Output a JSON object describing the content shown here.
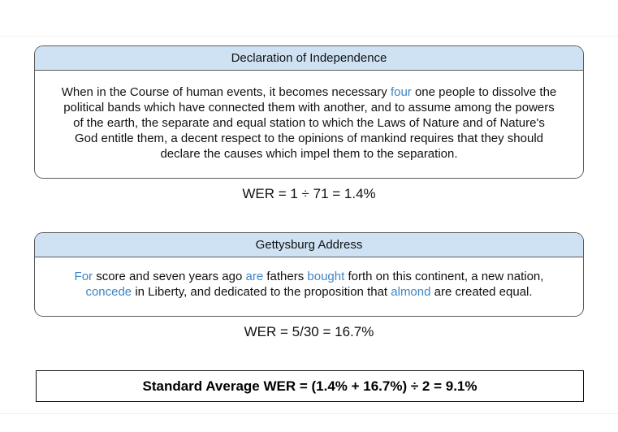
{
  "card1": {
    "title": "Declaration of Independence",
    "lines": [
      [
        {
          "text": "When in the Course of human events, it becomes necessary ",
          "hl": false
        },
        {
          "text": "four",
          "hl": true
        },
        {
          "text": " one people to dissolve the",
          "hl": false
        }
      ],
      [
        {
          "text": "political bands which have connected them with another, and to assume among the powers",
          "hl": false
        }
      ],
      [
        {
          "text": "of the earth, the separate and equal station to which the Laws of Nature and of Nature's",
          "hl": false
        }
      ],
      [
        {
          "text": "God entitle them, a decent respect to the opinions of mankind requires that they should",
          "hl": false
        }
      ],
      [
        {
          "text": "declare the causes which impel them to the separation.",
          "hl": false
        }
      ]
    ],
    "wer": "WER = 1 ÷ 71 = 1.4%"
  },
  "card2": {
    "title": "Gettysburg Address",
    "lines": [
      [
        {
          "text": "For",
          "hl": true
        },
        {
          "text": " score and seven years ago ",
          "hl": false
        },
        {
          "text": "are",
          "hl": true
        },
        {
          "text": " fathers ",
          "hl": false
        },
        {
          "text": "bought",
          "hl": true
        },
        {
          "text": " forth on this continent, a new nation,",
          "hl": false
        }
      ],
      [
        {
          "text": "concede",
          "hl": true
        },
        {
          "text": " in Liberty, and dedicated to the proposition that ",
          "hl": false
        },
        {
          "text": "almond",
          "hl": true
        },
        {
          "text": " are created equal.",
          "hl": false
        }
      ]
    ],
    "wer": "WER = 5/30 = 16.7%"
  },
  "summary": "Standard Average WER = (1.4% + 16.7%) ÷ 2 = 9.1%",
  "colors": {
    "header_fill": "#cfe2f3",
    "border": "#5b5b5b",
    "highlight": "#3d85c6"
  }
}
